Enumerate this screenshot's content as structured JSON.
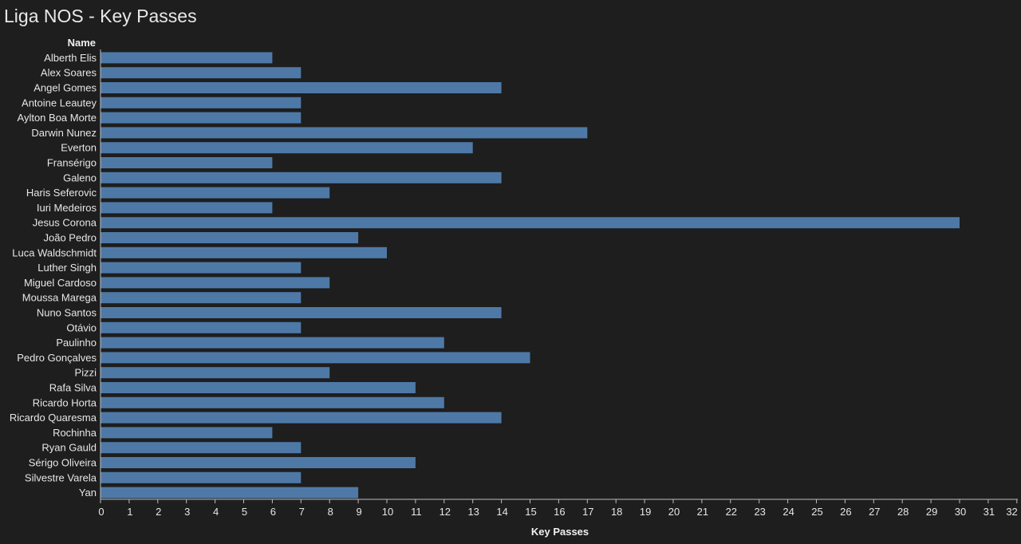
{
  "title": "Liga NOS - Key Passes",
  "chart_data": {
    "type": "bar",
    "orientation": "horizontal",
    "row_header": "Name",
    "xlabel": "Key Passes",
    "ylabel": "",
    "xlim": [
      0,
      32
    ],
    "x_ticks": [
      0,
      1,
      2,
      3,
      4,
      5,
      6,
      7,
      8,
      9,
      10,
      11,
      12,
      13,
      14,
      15,
      16,
      17,
      18,
      19,
      20,
      21,
      22,
      23,
      24,
      25,
      26,
      27,
      28,
      29,
      30,
      31,
      32
    ],
    "bar_color": "#4e79a7",
    "background": "#1e1e1e",
    "grid": false,
    "categories": [
      "Alberth Elis",
      "Alex Soares",
      "Angel Gomes",
      "Antoine Leautey",
      "Aylton Boa Morte",
      "Darwin Nunez",
      "Everton",
      "Fransérigo",
      "Galeno",
      "Haris Seferovic",
      "Iuri Medeiros",
      "Jesus Corona",
      "João Pedro",
      "Luca Waldschmidt",
      "Luther Singh",
      "Miguel Cardoso",
      "Moussa Marega",
      "Nuno Santos",
      "Otávio",
      "Paulinho",
      "Pedro Gonçalves",
      "Pizzi",
      "Rafa Silva",
      "Ricardo Horta",
      "Ricardo Quaresma",
      "Rochinha",
      "Ryan Gauld",
      "Sérigo Oliveira",
      "Silvestre Varela",
      "Yan"
    ],
    "values": [
      6,
      7,
      14,
      7,
      7,
      17,
      13,
      6,
      14,
      8,
      6,
      30,
      9,
      10,
      7,
      8,
      7,
      14,
      7,
      12,
      15,
      8,
      11,
      12,
      14,
      6,
      7,
      11,
      7,
      9
    ]
  }
}
